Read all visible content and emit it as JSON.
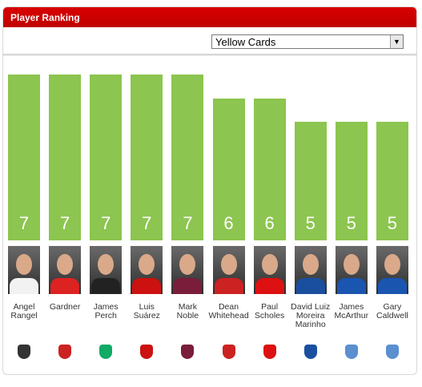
{
  "chart_data": {
    "type": "bar",
    "title": "Player Ranking",
    "selector": "Yellow Cards",
    "categories": [
      "Angel Rangel",
      "Gardner",
      "James Perch",
      "Luis Suárez",
      "Mark Noble",
      "Dean Whitehead",
      "Paul Scholes",
      "David Luiz Moreira Marinho",
      "James McArthur",
      "Gary Caldwell"
    ],
    "values": [
      7,
      7,
      7,
      7,
      7,
      6,
      6,
      5,
      5,
      5
    ],
    "color": "#8cc54f"
  }
}
